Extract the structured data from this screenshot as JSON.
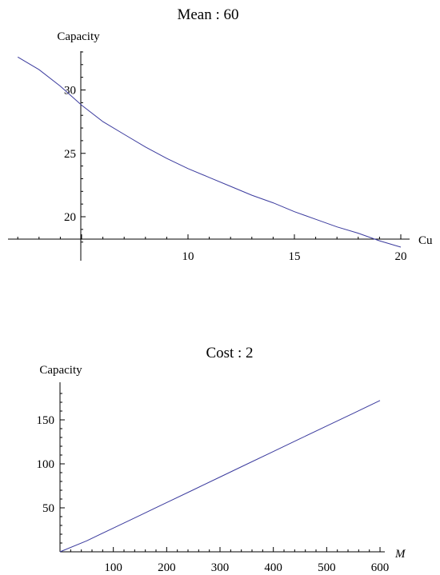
{
  "chart_data": [
    {
      "type": "line",
      "title": "Mean : 60",
      "xlabel": "Cu",
      "ylabel": "Capacity",
      "x_ticks": [
        10,
        15,
        20
      ],
      "y_ticks": [
        20,
        25,
        30
      ],
      "xlim": [
        2,
        20
      ],
      "ylim": [
        17.3,
        33.2
      ],
      "series": [
        {
          "x": [
            2.0,
            3.0,
            4.0,
            5.0,
            6.0,
            7.0,
            8.0,
            9.0,
            10.0,
            11.0,
            12.0,
            13.0,
            14.0,
            15.0,
            16.0,
            17.0,
            18.0,
            19.0,
            20.0
          ],
          "values": [
            32.6,
            31.6,
            30.3,
            28.8,
            27.5,
            26.5,
            25.5,
            24.6,
            23.8,
            23.1,
            22.4,
            21.7,
            21.1,
            20.4,
            19.8,
            19.2,
            18.7,
            18.1,
            17.6
          ]
        }
      ]
    },
    {
      "type": "line",
      "title": "Cost : 2",
      "xlabel": "M",
      "ylabel": "Capacity",
      "x_ticks": [
        100,
        200,
        300,
        400,
        500,
        600
      ],
      "y_ticks": [
        50,
        100,
        150
      ],
      "xlim": [
        0,
        600
      ],
      "ylim": [
        0,
        185
      ],
      "series": [
        {
          "x": [
            0,
            50,
            100,
            150,
            200,
            250,
            300,
            350,
            400,
            450,
            500,
            550,
            600
          ],
          "values": [
            0,
            12.5,
            27,
            41.5,
            56,
            70.5,
            85,
            99.5,
            114,
            128.5,
            143,
            157.5,
            172
          ]
        }
      ]
    }
  ]
}
